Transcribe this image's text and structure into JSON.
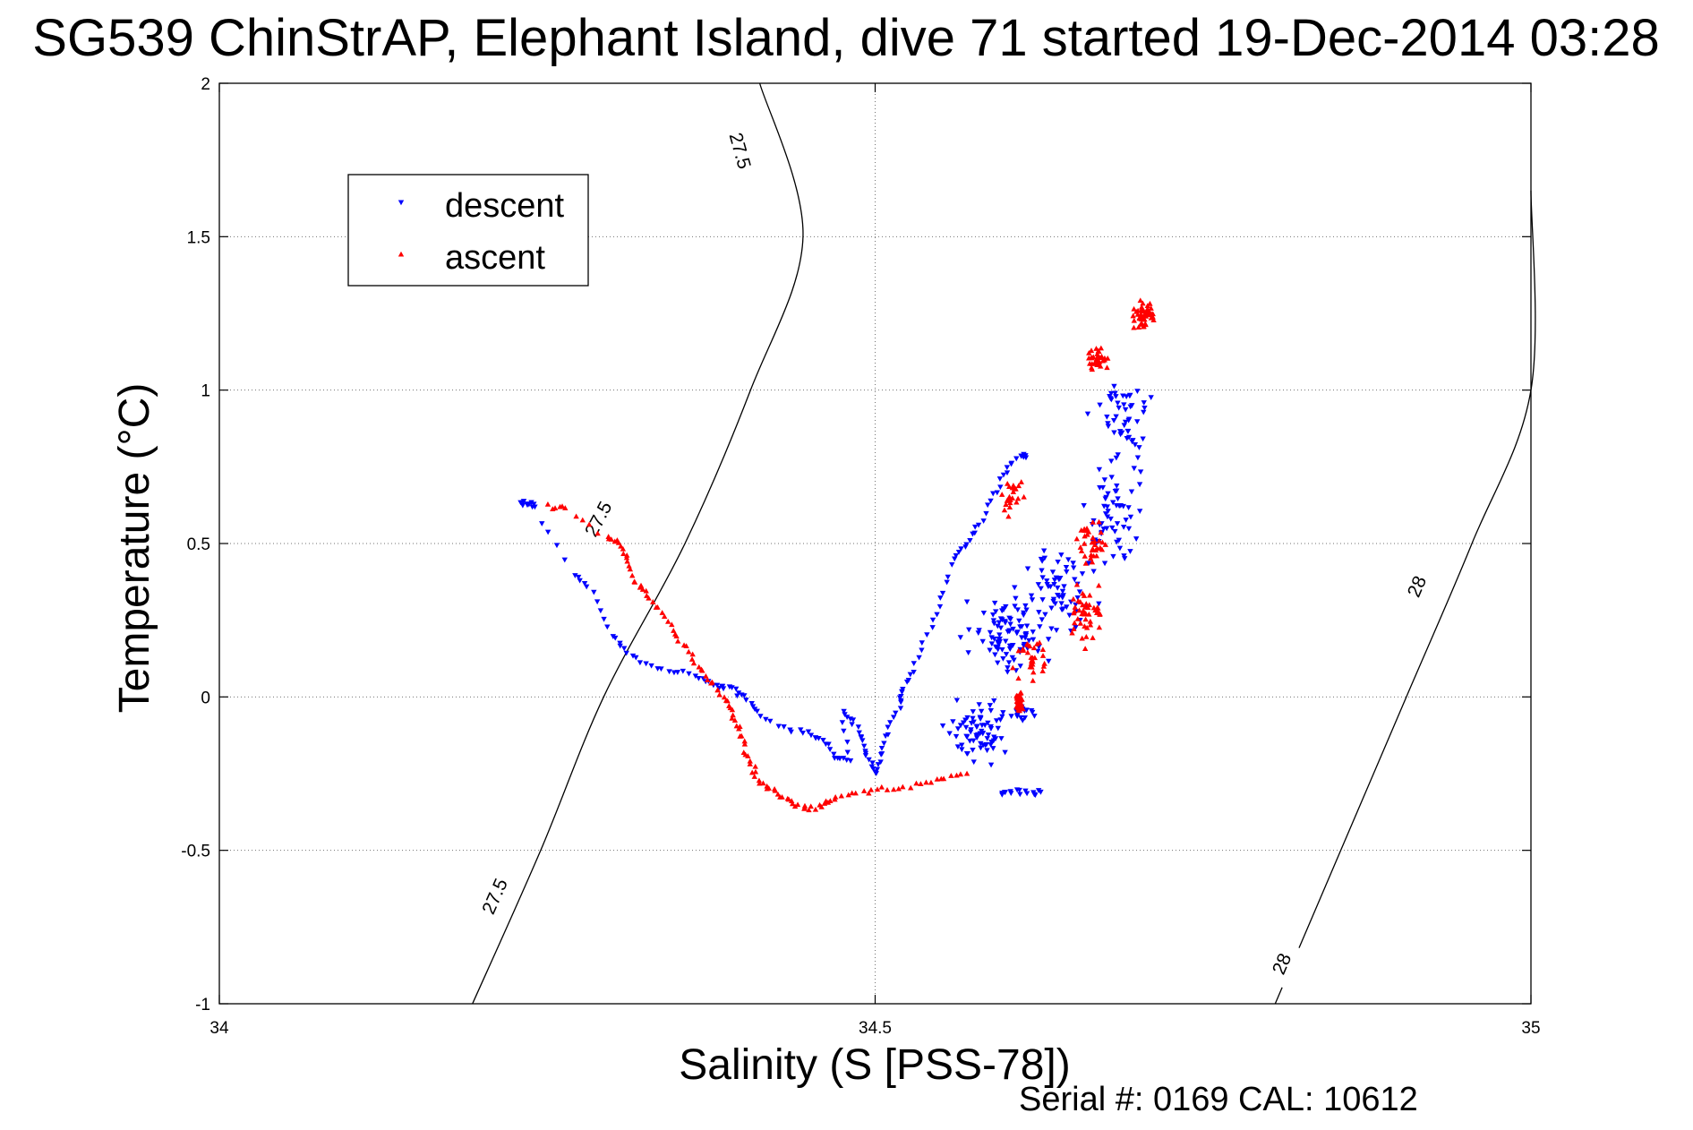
{
  "chart_data": {
    "type": "scatter",
    "title": "SG539 ChinStrAP, Elephant Island, dive 71 started 19-Dec-2014 03:28",
    "xlabel": "Salinity (S [PSS-78])",
    "ylabel": "Temperature (°C)",
    "xlim": [
      34,
      35
    ],
    "ylim": [
      -1,
      2
    ],
    "x_ticks": [
      "34",
      "34.5",
      "35"
    ],
    "y_ticks": [
      "-1",
      "-0.5",
      "0",
      "0.5",
      "1",
      "1.5",
      "2"
    ],
    "grid": true,
    "legend_position": "upper-left",
    "footer": "Serial #: 0169 CAL: 10612",
    "contours": [
      {
        "label": "27.5",
        "points": [
          [
            34.193,
            -1.0
          ],
          [
            34.245,
            -0.5
          ],
          [
            34.293,
            0.0
          ],
          [
            34.355,
            0.5
          ],
          [
            34.405,
            1.0
          ],
          [
            34.445,
            1.5
          ],
          [
            34.412,
            2.0
          ]
        ],
        "labels_at": [
          [
            34.21,
            -0.65,
            "27.5"
          ],
          [
            34.289,
            0.58,
            "27.5"
          ],
          [
            34.397,
            1.78,
            "27.5"
          ]
        ]
      },
      {
        "label": "28",
        "points": [
          [
            34.805,
            -1.0
          ],
          [
            34.855,
            -0.5
          ],
          [
            34.905,
            0.0
          ],
          [
            34.955,
            0.5
          ],
          [
            35.0,
            1.0
          ],
          [
            35.0,
            1.65
          ]
        ],
        "labels_at": [
          [
            34.81,
            -0.87,
            "28"
          ],
          [
            34.913,
            0.36,
            "28"
          ]
        ]
      }
    ],
    "series": [
      {
        "name": "descent",
        "color": "#0000ff",
        "marker": "triangle-down",
        "path": [
          [
            34.23,
            0.63
          ],
          [
            34.235,
            0.63
          ],
          [
            34.24,
            0.62
          ],
          [
            34.27,
            0.4
          ],
          [
            34.285,
            0.34
          ],
          [
            34.3,
            0.2
          ],
          [
            34.31,
            0.14
          ],
          [
            34.33,
            0.1
          ],
          [
            34.35,
            0.08
          ],
          [
            34.37,
            0.06
          ],
          [
            34.38,
            0.03
          ],
          [
            34.39,
            0.03
          ],
          [
            34.4,
            0.0
          ],
          [
            34.41,
            -0.05
          ],
          [
            34.43,
            -0.1
          ],
          [
            34.45,
            -0.12
          ],
          [
            34.46,
            -0.14
          ],
          [
            34.47,
            -0.19
          ],
          [
            34.48,
            -0.21
          ],
          [
            34.475,
            -0.05
          ],
          [
            34.485,
            -0.09
          ],
          [
            34.49,
            -0.15
          ],
          [
            34.495,
            -0.2
          ],
          [
            34.5,
            -0.25
          ],
          [
            34.505,
            -0.18
          ],
          [
            34.51,
            -0.1
          ],
          [
            34.52,
            -0.02
          ],
          [
            34.52,
            0.02
          ],
          [
            34.53,
            0.08
          ],
          [
            34.54,
            0.2
          ],
          [
            34.55,
            0.32
          ],
          [
            34.56,
            0.45
          ],
          [
            34.57,
            0.5
          ],
          [
            34.58,
            0.56
          ],
          [
            34.59,
            0.66
          ],
          [
            34.6,
            0.73
          ],
          [
            34.61,
            0.79
          ],
          [
            34.615,
            0.78
          ]
        ],
        "clusters": [
          {
            "center": [
              34.575,
              -0.12
            ],
            "spread": [
              0.03,
              0.13
            ],
            "n": 70
          },
          {
            "center": [
              34.6,
              0.2
            ],
            "spread": [
              0.04,
              0.18
            ],
            "n": 90
          },
          {
            "center": [
              34.64,
              0.35
            ],
            "spread": [
              0.04,
              0.22
            ],
            "n": 70
          },
          {
            "center": [
              34.68,
              0.6
            ],
            "spread": [
              0.03,
              0.25
            ],
            "n": 60
          },
          {
            "center": [
              34.69,
              0.9
            ],
            "spread": [
              0.03,
              0.22
            ],
            "n": 50
          },
          {
            "center": [
              34.61,
              -0.31
            ],
            "spread": [
              0.03,
              0.02
            ],
            "n": 16
          },
          {
            "center": [
              34.61,
              -0.05
            ],
            "spread": [
              0.02,
              0.04
            ],
            "n": 20
          }
        ]
      },
      {
        "name": "ascent",
        "color": "#ff0000",
        "marker": "triangle-up",
        "path": [
          [
            34.25,
            0.62
          ],
          [
            34.265,
            0.61
          ],
          [
            34.295,
            0.52
          ],
          [
            34.305,
            0.5
          ],
          [
            34.31,
            0.45
          ],
          [
            34.315,
            0.38
          ],
          [
            34.325,
            0.34
          ],
          [
            34.335,
            0.29
          ],
          [
            34.345,
            0.22
          ],
          [
            34.355,
            0.16
          ],
          [
            34.365,
            0.1
          ],
          [
            34.375,
            0.05
          ],
          [
            34.385,
            0.0
          ],
          [
            34.39,
            -0.05
          ],
          [
            34.395,
            -0.1
          ],
          [
            34.4,
            -0.16
          ],
          [
            34.405,
            -0.22
          ],
          [
            34.41,
            -0.27
          ],
          [
            34.42,
            -0.3
          ],
          [
            34.43,
            -0.33
          ],
          [
            34.44,
            -0.35
          ],
          [
            34.45,
            -0.37
          ],
          [
            34.46,
            -0.35
          ],
          [
            34.47,
            -0.33
          ],
          [
            34.49,
            -0.31
          ],
          [
            34.51,
            -0.3
          ],
          [
            34.53,
            -0.29
          ],
          [
            34.55,
            -0.27
          ],
          [
            34.57,
            -0.25
          ]
        ],
        "clusters": [
          {
            "center": [
              34.605,
              0.65
            ],
            "spread": [
              0.012,
              0.08
            ],
            "n": 25
          },
          {
            "center": [
              34.665,
              0.5
            ],
            "spread": [
              0.015,
              0.1
            ],
            "n": 35
          },
          {
            "center": [
              34.66,
              0.28
            ],
            "spread": [
              0.02,
              0.15
            ],
            "n": 45
          },
          {
            "center": [
              34.62,
              0.12
            ],
            "spread": [
              0.02,
              0.1
            ],
            "n": 30
          },
          {
            "center": [
              34.61,
              -0.02
            ],
            "spread": [
              0.004,
              0.05
            ],
            "n": 30
          },
          {
            "center": [
              34.67,
              1.1
            ],
            "spread": [
              0.015,
              0.05
            ],
            "n": 35
          },
          {
            "center": [
              34.705,
              1.25
            ],
            "spread": [
              0.012,
              0.07
            ],
            "n": 50
          }
        ]
      }
    ]
  }
}
